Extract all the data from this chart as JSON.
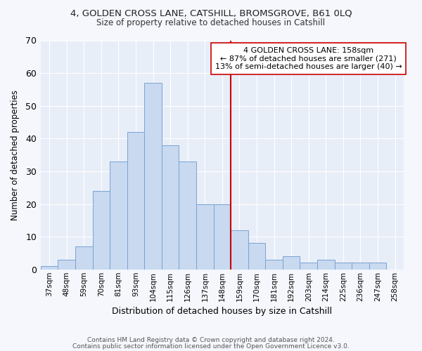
{
  "title1": "4, GOLDEN CROSS LANE, CATSHILL, BROMSGROVE, B61 0LQ",
  "title2": "Size of property relative to detached houses in Catshill",
  "xlabel": "Distribution of detached houses by size in Catshill",
  "ylabel": "Number of detached properties",
  "bar_labels": [
    "37sqm",
    "48sqm",
    "59sqm",
    "70sqm",
    "81sqm",
    "93sqm",
    "104sqm",
    "115sqm",
    "126sqm",
    "137sqm",
    "148sqm",
    "159sqm",
    "170sqm",
    "181sqm",
    "192sqm",
    "203sqm",
    "214sqm",
    "225sqm",
    "236sqm",
    "247sqm",
    "258sqm"
  ],
  "bar_values": [
    1,
    3,
    7,
    24,
    33,
    42,
    57,
    38,
    33,
    20,
    20,
    12,
    8,
    3,
    4,
    2,
    3,
    2,
    2,
    2,
    0
  ],
  "bar_color": "#c8d9f0",
  "bar_edge_color": "#7ba3d4",
  "vline_index": 11,
  "vline_color": "#cc0000",
  "annotation_text": "4 GOLDEN CROSS LANE: 158sqm\n← 87% of detached houses are smaller (271)\n13% of semi-detached houses are larger (40) →",
  "annotation_box_facecolor": "#ffffff",
  "annotation_box_edgecolor": "#cc0000",
  "ylim": [
    0,
    70
  ],
  "yticks": [
    0,
    10,
    20,
    30,
    40,
    50,
    60,
    70
  ],
  "bg_color": "#e8eef8",
  "grid_color": "#ffffff",
  "footer1": "Contains HM Land Registry data © Crown copyright and database right 2024.",
  "footer2": "Contains public sector information licensed under the Open Government Licence v3.0."
}
